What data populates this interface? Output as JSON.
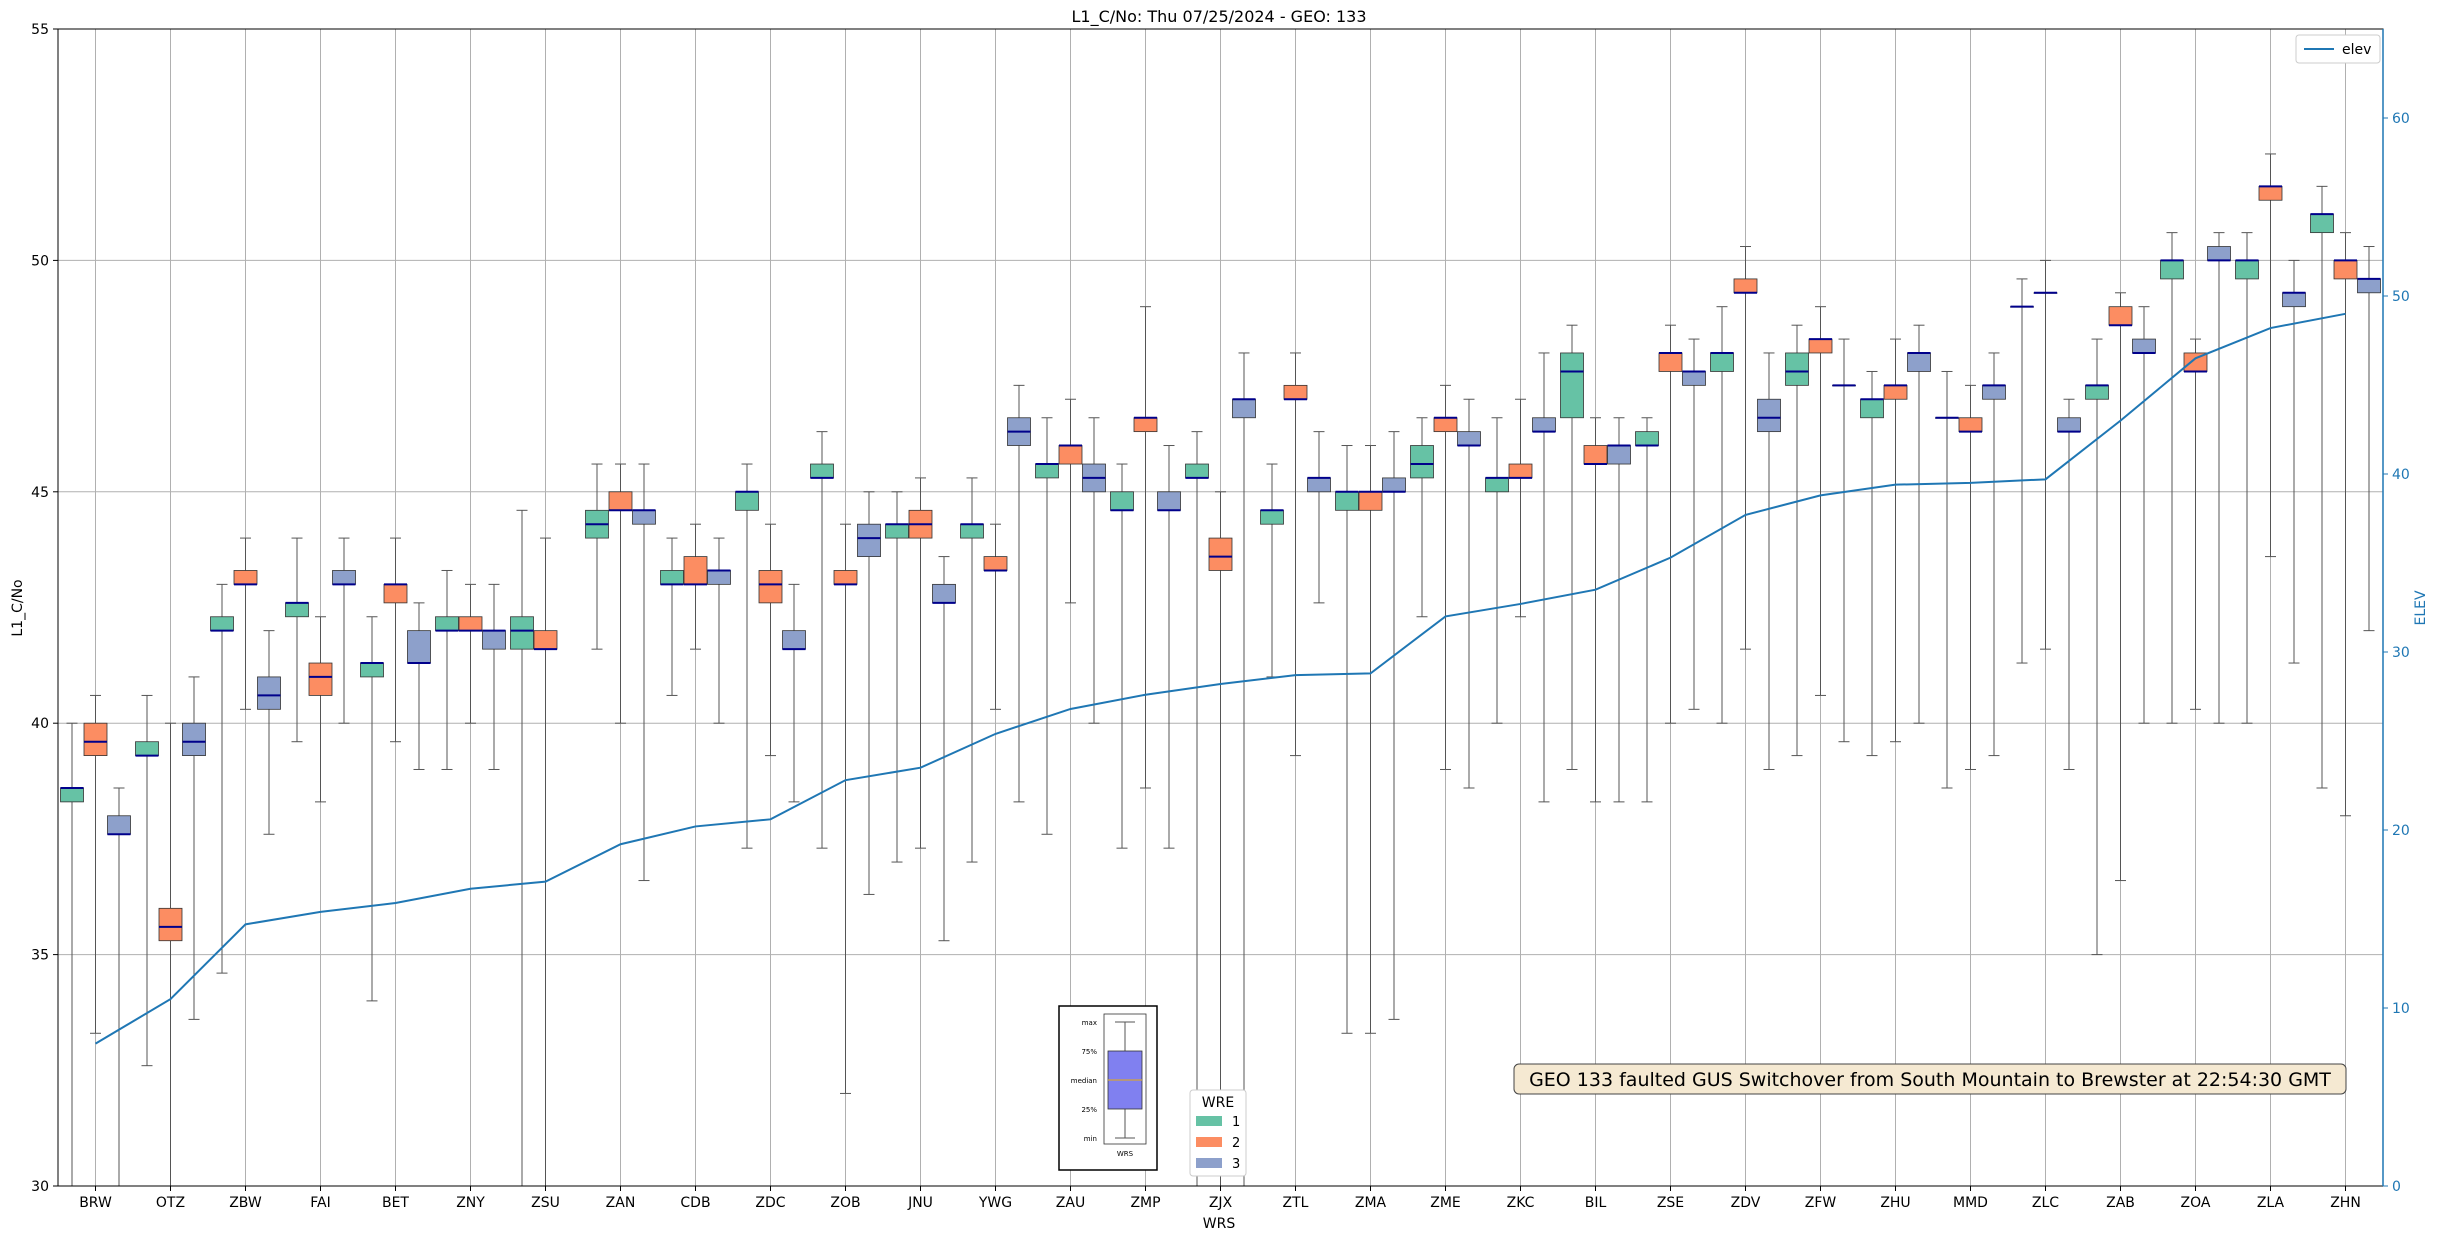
{
  "chart_data": {
    "type": "box",
    "title": "L1_C/No: Thu 07/25/2024 - GEO: 133",
    "xlabel": "WRS",
    "ylabel": "L1_C/No",
    "y2label": "ELEV",
    "ylim": [
      30,
      55
    ],
    "y2lim": [
      0,
      65
    ],
    "yticks": [
      "30",
      "35",
      "40",
      "45",
      "50",
      "55"
    ],
    "y2ticks": [
      "0",
      "10",
      "20",
      "30",
      "40",
      "50",
      "60"
    ],
    "grid": true,
    "categories": [
      "BRW",
      "OTZ",
      "ZBW",
      "FAI",
      "BET",
      "ZNY",
      "ZSU",
      "ZAN",
      "CDB",
      "ZDC",
      "ZOB",
      "JNU",
      "YWG",
      "ZAU",
      "ZMP",
      "ZJX",
      "ZTL",
      "ZMA",
      "ZME",
      "ZKC",
      "BIL",
      "ZSE",
      "ZDV",
      "ZFW",
      "ZHU",
      "MMD",
      "ZLC",
      "ZAB",
      "ZOA",
      "ZLA",
      "ZHN"
    ],
    "wre_colors": {
      "1": "#66c2a5",
      "2": "#fc8d62",
      "3": "#8da0cb"
    },
    "boxes": [
      {
        "site": "BRW",
        "wre": 1,
        "min": 30,
        "q1": 38.3,
        "median": 38.6,
        "q3": 38.6,
        "max": 40
      },
      {
        "site": "BRW",
        "wre": 2,
        "min": 33.3,
        "q1": 39.3,
        "median": 39.6,
        "q3": 40,
        "max": 40.6
      },
      {
        "site": "BRW",
        "wre": 3,
        "min": 30,
        "q1": 37.6,
        "median": 37.6,
        "q3": 38,
        "max": 38.6
      },
      {
        "site": "OTZ",
        "wre": 1,
        "min": 32.6,
        "q1": 39.3,
        "median": 39.3,
        "q3": 39.6,
        "max": 40.6
      },
      {
        "site": "OTZ",
        "wre": 2,
        "min": 30,
        "q1": 35.3,
        "median": 35.6,
        "q3": 36,
        "max": 40
      },
      {
        "site": "OTZ",
        "wre": 3,
        "min": 33.6,
        "q1": 39.3,
        "median": 39.6,
        "q3": 40,
        "max": 41
      },
      {
        "site": "ZBW",
        "wre": 1,
        "min": 34.6,
        "q1": 42,
        "median": 42,
        "q3": 42.3,
        "max": 43
      },
      {
        "site": "ZBW",
        "wre": 2,
        "min": 40.3,
        "q1": 43,
        "median": 43,
        "q3": 43.3,
        "max": 44
      },
      {
        "site": "ZBW",
        "wre": 3,
        "min": 37.6,
        "q1": 40.3,
        "median": 40.6,
        "q3": 41,
        "max": 42
      },
      {
        "site": "FAI",
        "wre": 1,
        "min": 39.6,
        "q1": 42.3,
        "median": 42.6,
        "q3": 42.6,
        "max": 44
      },
      {
        "site": "FAI",
        "wre": 2,
        "min": 38.3,
        "q1": 40.6,
        "median": 41,
        "q3": 41.3,
        "max": 42.3
      },
      {
        "site": "FAI",
        "wre": 3,
        "min": 40,
        "q1": 43,
        "median": 43,
        "q3": 43.3,
        "max": 44
      },
      {
        "site": "BET",
        "wre": 1,
        "min": 34,
        "q1": 41,
        "median": 41.3,
        "q3": 41.3,
        "max": 42.3
      },
      {
        "site": "BET",
        "wre": 2,
        "min": 39.6,
        "q1": 42.6,
        "median": 43,
        "q3": 43,
        "max": 44
      },
      {
        "site": "BET",
        "wre": 3,
        "min": 39,
        "q1": 41.3,
        "median": 41.3,
        "q3": 42,
        "max": 42.6
      },
      {
        "site": "ZNY",
        "wre": 1,
        "min": 39,
        "q1": 42,
        "median": 42,
        "q3": 42.3,
        "max": 43.3
      },
      {
        "site": "ZNY",
        "wre": 2,
        "min": 40,
        "q1": 42,
        "median": 42,
        "q3": 42.3,
        "max": 43
      },
      {
        "site": "ZNY",
        "wre": 3,
        "min": 39,
        "q1": 41.6,
        "median": 42,
        "q3": 42,
        "max": 43
      },
      {
        "site": "ZSU",
        "wre": 1,
        "min": 30,
        "q1": 41.6,
        "median": 42,
        "q3": 42.3,
        "max": 44.6
      },
      {
        "site": "ZSU",
        "wre": 2,
        "min": 30,
        "q1": 41.6,
        "median": 41.6,
        "q3": 42,
        "max": 44
      },
      {
        "site": "ZAN",
        "wre": 1,
        "min": 41.6,
        "q1": 44,
        "median": 44.3,
        "q3": 44.6,
        "max": 45.6
      },
      {
        "site": "ZAN",
        "wre": 2,
        "min": 40,
        "q1": 44.6,
        "median": 44.6,
        "q3": 45,
        "max": 45.6
      },
      {
        "site": "ZAN",
        "wre": 3,
        "min": 36.6,
        "q1": 44.3,
        "median": 44.6,
        "q3": 44.6,
        "max": 45.6
      },
      {
        "site": "CDB",
        "wre": 1,
        "min": 40.6,
        "q1": 43,
        "median": 43,
        "q3": 43.3,
        "max": 44
      },
      {
        "site": "CDB",
        "wre": 2,
        "min": 41.6,
        "q1": 43,
        "median": 43,
        "q3": 43.6,
        "max": 44.3
      },
      {
        "site": "CDB",
        "wre": 3,
        "min": 40,
        "q1": 43,
        "median": 43.3,
        "q3": 43.3,
        "max": 44
      },
      {
        "site": "ZDC",
        "wre": 1,
        "min": 37.3,
        "q1": 44.6,
        "median": 45,
        "q3": 45,
        "max": 45.6
      },
      {
        "site": "ZDC",
        "wre": 2,
        "min": 39.3,
        "q1": 42.6,
        "median": 43,
        "q3": 43.3,
        "max": 44.3
      },
      {
        "site": "ZDC",
        "wre": 3,
        "min": 38.3,
        "q1": 41.6,
        "median": 41.6,
        "q3": 42,
        "max": 43
      },
      {
        "site": "ZOB",
        "wre": 1,
        "min": 37.3,
        "q1": 45.3,
        "median": 45.3,
        "q3": 45.6,
        "max": 46.3
      },
      {
        "site": "ZOB",
        "wre": 2,
        "min": 32,
        "q1": 43,
        "median": 43,
        "q3": 43.3,
        "max": 44.3
      },
      {
        "site": "ZOB",
        "wre": 3,
        "min": 36.3,
        "q1": 43.6,
        "median": 44,
        "q3": 44.3,
        "max": 45
      },
      {
        "site": "JNU",
        "wre": 1,
        "min": 37,
        "q1": 44,
        "median": 44.3,
        "q3": 44.3,
        "max": 45
      },
      {
        "site": "JNU",
        "wre": 2,
        "min": 37.3,
        "q1": 44,
        "median": 44.3,
        "q3": 44.6,
        "max": 45.3
      },
      {
        "site": "JNU",
        "wre": 3,
        "min": 35.3,
        "q1": 42.6,
        "median": 42.6,
        "q3": 43,
        "max": 43.6
      },
      {
        "site": "YWG",
        "wre": 1,
        "min": 37,
        "q1": 44,
        "median": 44.3,
        "q3": 44.3,
        "max": 45.3
      },
      {
        "site": "YWG",
        "wre": 2,
        "min": 40.3,
        "q1": 43.3,
        "median": 43.3,
        "q3": 43.6,
        "max": 44.3
      },
      {
        "site": "YWG",
        "wre": 3,
        "min": 38.3,
        "q1": 46,
        "median": 46.3,
        "q3": 46.6,
        "max": 47.3
      },
      {
        "site": "ZAU",
        "wre": 1,
        "min": 37.6,
        "q1": 45.3,
        "median": 45.6,
        "q3": 45.6,
        "max": 46.6
      },
      {
        "site": "ZAU",
        "wre": 2,
        "min": 42.6,
        "q1": 45.6,
        "median": 46,
        "q3": 46,
        "max": 47
      },
      {
        "site": "ZAU",
        "wre": 3,
        "min": 40,
        "q1": 45,
        "median": 45.3,
        "q3": 45.6,
        "max": 46.6
      },
      {
        "site": "ZMP",
        "wre": 1,
        "min": 37.3,
        "q1": 44.6,
        "median": 44.6,
        "q3": 45,
        "max": 45.6
      },
      {
        "site": "ZMP",
        "wre": 2,
        "min": 38.6,
        "q1": 46.3,
        "median": 46.6,
        "q3": 46.6,
        "max": 49
      },
      {
        "site": "ZMP",
        "wre": 3,
        "min": 37.3,
        "q1": 44.6,
        "median": 44.6,
        "q3": 45,
        "max": 46
      },
      {
        "site": "ZJX",
        "wre": 1,
        "min": 30,
        "q1": 45.3,
        "median": 45.3,
        "q3": 45.6,
        "max": 46.3
      },
      {
        "site": "ZJX",
        "wre": 2,
        "min": 30,
        "q1": 43.3,
        "median": 43.6,
        "q3": 44,
        "max": 45
      },
      {
        "site": "ZJX",
        "wre": 3,
        "min": 30,
        "q1": 46.6,
        "median": 47,
        "q3": 47,
        "max": 48
      },
      {
        "site": "ZTL",
        "wre": 1,
        "min": 41,
        "q1": 44.3,
        "median": 44.6,
        "q3": 44.6,
        "max": 45.6
      },
      {
        "site": "ZTL",
        "wre": 2,
        "min": 39.3,
        "q1": 47,
        "median": 47,
        "q3": 47.3,
        "max": 48
      },
      {
        "site": "ZTL",
        "wre": 3,
        "min": 42.6,
        "q1": 45,
        "median": 45.3,
        "q3": 45.3,
        "max": 46.3
      },
      {
        "site": "ZMA",
        "wre": 1,
        "min": 33.3,
        "q1": 44.6,
        "median": 45,
        "q3": 45,
        "max": 46
      },
      {
        "site": "ZMA",
        "wre": 2,
        "min": 33.3,
        "q1": 44.6,
        "median": 45,
        "q3": 45,
        "max": 46
      },
      {
        "site": "ZMA",
        "wre": 3,
        "min": 33.6,
        "q1": 45,
        "median": 45,
        "q3": 45.3,
        "max": 46.3
      },
      {
        "site": "ZME",
        "wre": 1,
        "min": 42.3,
        "q1": 45.3,
        "median": 45.6,
        "q3": 46,
        "max": 46.6
      },
      {
        "site": "ZME",
        "wre": 2,
        "min": 39,
        "q1": 46.3,
        "median": 46.6,
        "q3": 46.6,
        "max": 47.3
      },
      {
        "site": "ZME",
        "wre": 3,
        "min": 38.6,
        "q1": 46,
        "median": 46,
        "q3": 46.3,
        "max": 47
      },
      {
        "site": "ZKC",
        "wre": 1,
        "min": 40,
        "q1": 45,
        "median": 45.3,
        "q3": 45.3,
        "max": 46.6
      },
      {
        "site": "ZKC",
        "wre": 2,
        "min": 42.3,
        "q1": 45.3,
        "median": 45.3,
        "q3": 45.6,
        "max": 47
      },
      {
        "site": "ZKC",
        "wre": 3,
        "min": 38.3,
        "q1": 46.3,
        "median": 46.3,
        "q3": 46.6,
        "max": 48
      },
      {
        "site": "BIL",
        "wre": 1,
        "min": 39,
        "q1": 46.6,
        "median": 47.6,
        "q3": 48,
        "max": 48.6
      },
      {
        "site": "BIL",
        "wre": 2,
        "min": 38.3,
        "q1": 45.6,
        "median": 45.6,
        "q3": 46,
        "max": 46.6
      },
      {
        "site": "BIL",
        "wre": 3,
        "min": 38.3,
        "q1": 45.6,
        "median": 46,
        "q3": 46,
        "max": 46.6
      },
      {
        "site": "ZSE",
        "wre": 1,
        "min": 38.3,
        "q1": 46,
        "median": 46,
        "q3": 46.3,
        "max": 46.6
      },
      {
        "site": "ZSE",
        "wre": 2,
        "min": 40,
        "q1": 47.6,
        "median": 48,
        "q3": 48,
        "max": 48.6
      },
      {
        "site": "ZSE",
        "wre": 3,
        "min": 40.3,
        "q1": 47.3,
        "median": 47.6,
        "q3": 47.6,
        "max": 48.3
      },
      {
        "site": "ZDV",
        "wre": 1,
        "min": 40,
        "q1": 47.6,
        "median": 48,
        "q3": 48,
        "max": 49
      },
      {
        "site": "ZDV",
        "wre": 2,
        "min": 41.6,
        "q1": 49.3,
        "median": 49.3,
        "q3": 49.6,
        "max": 50.3
      },
      {
        "site": "ZDV",
        "wre": 3,
        "min": 39,
        "q1": 46.3,
        "median": 46.6,
        "q3": 47,
        "max": 48
      },
      {
        "site": "ZFW",
        "wre": 1,
        "min": 39.3,
        "q1": 47.3,
        "median": 47.6,
        "q3": 48,
        "max": 48.6
      },
      {
        "site": "ZFW",
        "wre": 2,
        "min": 40.6,
        "q1": 48,
        "median": 48.3,
        "q3": 48.3,
        "max": 49
      },
      {
        "site": "ZFW",
        "wre": 3,
        "min": 39.6,
        "q1": 47.3,
        "median": 47.3,
        "q3": 47.3,
        "max": 48.3
      },
      {
        "site": "ZHU",
        "wre": 1,
        "min": 39.3,
        "q1": 46.6,
        "median": 47,
        "q3": 47,
        "max": 47.6
      },
      {
        "site": "ZHU",
        "wre": 2,
        "min": 39.6,
        "q1": 47,
        "median": 47.3,
        "q3": 47.3,
        "max": 48.3
      },
      {
        "site": "ZHU",
        "wre": 3,
        "min": 40,
        "q1": 47.6,
        "median": 48,
        "q3": 48,
        "max": 48.6
      },
      {
        "site": "MMD",
        "wre": 1,
        "min": 38.6,
        "q1": 46.6,
        "median": 46.6,
        "q3": 46.6,
        "max": 47.6
      },
      {
        "site": "MMD",
        "wre": 2,
        "min": 39,
        "q1": 46.3,
        "median": 46.3,
        "q3": 46.6,
        "max": 47.3
      },
      {
        "site": "MMD",
        "wre": 3,
        "min": 39.3,
        "q1": 47,
        "median": 47.3,
        "q3": 47.3,
        "max": 48
      },
      {
        "site": "ZLC",
        "wre": 1,
        "min": 41.3,
        "q1": 49,
        "median": 49,
        "q3": 49,
        "max": 49.6
      },
      {
        "site": "ZLC",
        "wre": 2,
        "min": 41.6,
        "q1": 49.3,
        "median": 49.3,
        "q3": 49.3,
        "max": 50
      },
      {
        "site": "ZLC",
        "wre": 3,
        "min": 39,
        "q1": 46.3,
        "median": 46.3,
        "q3": 46.6,
        "max": 47
      },
      {
        "site": "ZAB",
        "wre": 1,
        "min": 35,
        "q1": 47,
        "median": 47.3,
        "q3": 47.3,
        "max": 48.3
      },
      {
        "site": "ZAB",
        "wre": 2,
        "min": 36.6,
        "q1": 48.6,
        "median": 48.6,
        "q3": 49,
        "max": 49.3
      },
      {
        "site": "ZAB",
        "wre": 3,
        "min": 40,
        "q1": 48,
        "median": 48,
        "q3": 48.3,
        "max": 49
      },
      {
        "site": "ZOA",
        "wre": 1,
        "min": 40,
        "q1": 49.6,
        "median": 50,
        "q3": 50,
        "max": 50.6
      },
      {
        "site": "ZOA",
        "wre": 2,
        "min": 40.3,
        "q1": 47.6,
        "median": 47.6,
        "q3": 48,
        "max": 48.3
      },
      {
        "site": "ZOA",
        "wre": 3,
        "min": 40,
        "q1": 50,
        "median": 50,
        "q3": 50.3,
        "max": 50.6
      },
      {
        "site": "ZLA",
        "wre": 1,
        "min": 40,
        "q1": 49.6,
        "median": 50,
        "q3": 50,
        "max": 50.6
      },
      {
        "site": "ZLA",
        "wre": 2,
        "min": 43.6,
        "q1": 51.3,
        "median": 51.6,
        "q3": 51.6,
        "max": 52.3
      },
      {
        "site": "ZLA",
        "wre": 3,
        "min": 41.3,
        "q1": 49,
        "median": 49.3,
        "q3": 49.3,
        "max": 50
      },
      {
        "site": "ZHN",
        "wre": 1,
        "min": 38.6,
        "q1": 50.6,
        "median": 51,
        "q3": 51,
        "max": 51.6
      },
      {
        "site": "ZHN",
        "wre": 2,
        "min": 38,
        "q1": 49.6,
        "median": 50,
        "q3": 50,
        "max": 50.6
      },
      {
        "site": "ZHN",
        "wre": 3,
        "min": 42,
        "q1": 49.3,
        "median": 49.6,
        "q3": 49.6,
        "max": 50.3
      }
    ],
    "elev": {
      "name": "elev",
      "values": [
        8,
        10.5,
        14.7,
        15.4,
        15.9,
        16.7,
        17.1,
        19.2,
        20.2,
        20.6,
        22.8,
        23.5,
        25.4,
        26.8,
        27.6,
        28.2,
        28.7,
        28.8,
        32,
        32.7,
        33.5,
        35.3,
        37.7,
        38.8,
        39.4,
        39.5,
        39.7,
        43,
        46.5,
        48.2,
        49
      ]
    },
    "legend": {
      "title": "WRE",
      "entries": [
        "1",
        "2",
        "3"
      ],
      "placement": "lower-center"
    },
    "elev_legend_placement": "upper-right",
    "key_box": {
      "labels": [
        "max",
        "75%",
        "median",
        "25%",
        "min"
      ],
      "xlabel": "WRS"
    },
    "annotation": "GEO 133 faulted GUS Switchover from South Mountain to Brewster at 22:54:30 GMT"
  },
  "colors": {
    "elev_line": "#1f77b4",
    "median": "#00008b",
    "grid": "#b0b0b0",
    "key_fill": "#8080f0",
    "key_median": "#d4a23a",
    "annotation_bg": "#f5e9d2"
  }
}
